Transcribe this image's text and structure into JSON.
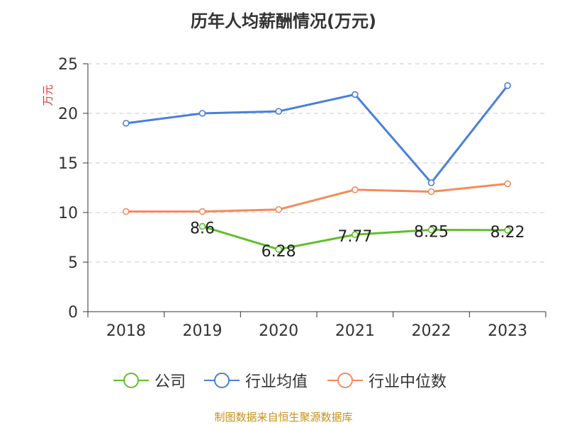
{
  "title": "历年人均薪酬情况(万元)",
  "source": "制图数据来自恒生聚源数据库",
  "chart_data": {
    "type": "line",
    "title": "历年人均薪酬情况(万元)",
    "ylabel": "万元",
    "xlabel": "",
    "categories": [
      "2018",
      "2019",
      "2020",
      "2021",
      "2022",
      "2023"
    ],
    "ylim": [
      0,
      25
    ],
    "yticks": [
      0,
      5,
      10,
      15,
      20,
      25
    ],
    "grid": true,
    "legend_position": "bottom",
    "series": [
      {
        "name": "公司",
        "color": "#5fbf2a",
        "values": [
          null,
          8.6,
          6.28,
          7.77,
          8.25,
          8.22
        ],
        "labels": [
          "",
          "8.6",
          "6.28",
          "7.77",
          "8.25",
          "8.22"
        ]
      },
      {
        "name": "行业均值",
        "color": "#4a7fd8",
        "values": [
          19.0,
          20.0,
          20.2,
          21.9,
          13.0,
          22.8
        ]
      },
      {
        "name": "行业中位数",
        "color": "#f28c5a",
        "values": [
          10.1,
          10.1,
          10.3,
          12.3,
          12.1,
          12.9
        ]
      }
    ]
  }
}
